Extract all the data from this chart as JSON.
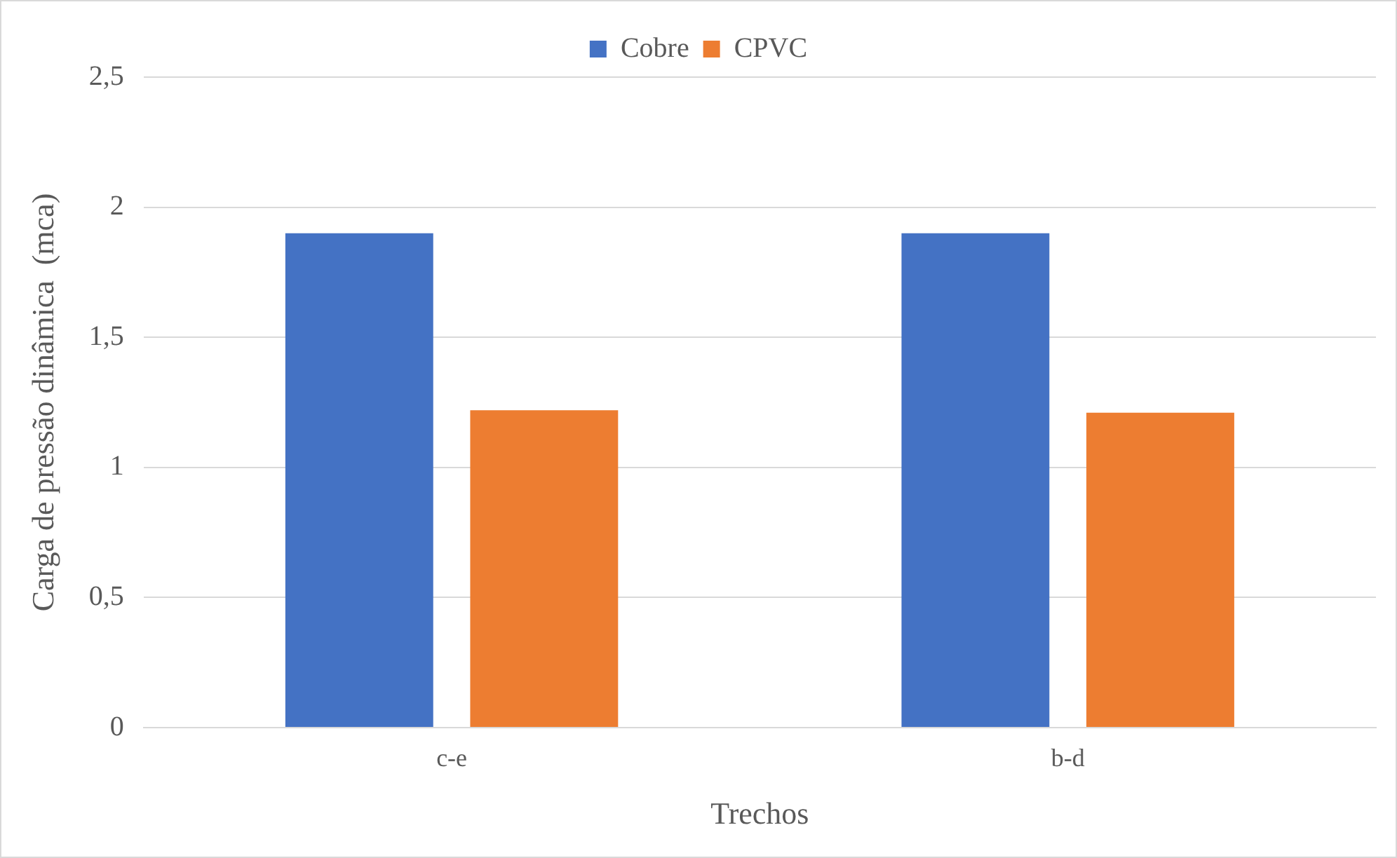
{
  "chart_data": {
    "type": "bar",
    "xlabel": "Trechos",
    "ylabel": "Carga de pressão dinâmica  (mca)",
    "categories": [
      "c-e",
      "b-d"
    ],
    "series": [
      {
        "name": "Cobre",
        "color": "#4472c4",
        "values": [
          1.9,
          1.9
        ]
      },
      {
        "name": "CPVC",
        "color": "#ed7d31",
        "values": [
          1.22,
          1.21
        ]
      }
    ],
    "ylim": [
      0,
      2.5
    ],
    "yticks": [
      0,
      {
        "value": 0.5,
        "label": "0,5"
      },
      1,
      {
        "value": 1.5,
        "label": "1,5"
      },
      2,
      {
        "value": 2.5,
        "label": "2,5"
      }
    ],
    "grid": "y",
    "legend": "top"
  }
}
